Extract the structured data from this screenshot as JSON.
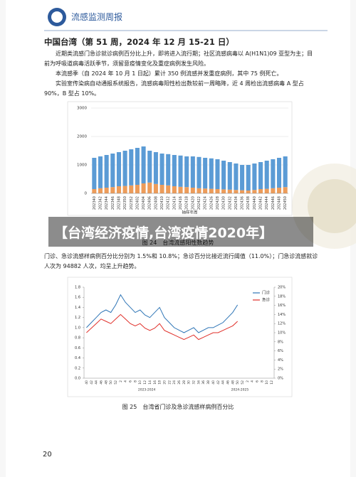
{
  "header": {
    "title": "流感监测周报"
  },
  "section": {
    "title": "中国台湾（第 51 周，2024 年 12 月 15-21 日）",
    "paragraphs": [
      "近期类流感门急诊就诊病例百分比上升，即将进入流行期；社区流感病毒以 A(H1N1)09 亚型为主；目前为呼吸道病毒活跃季节，须留意疫情变化及重症病例发生风险。",
      "本流感季（自 2024 年 10 月 1 日起）累计 350 例流感并发重症病例，其中 75 例死亡。",
      "实验室传染病自动通报系统报告，流感病毒阳性检出数较前一周略降，近 4 周检出流感病毒 A 型占 90%，B 型占 10%。"
    ]
  },
  "overlay": {
    "title": "【台湾经济疫情,台湾疫情2020年】"
  },
  "captions": [
    "图 24　台湾流感阳性数趋势",
    "图 25　台湾省门诊及急诊流感样病例百分比"
  ],
  "paragraph_after": "门诊、急诊流感样病例百分比分别为 1.5%和 10.8%；急诊百分比接近流行阈值（11.0%）；门急诊流感就诊人次为 94882 人次，均呈上升趋势。",
  "page_number": "20",
  "chart_data": [
    {
      "type": "stacked-bar",
      "x_label": "抽样年周",
      "categories": [
        "202340",
        "202342",
        "202344",
        "202346",
        "202348",
        "202350",
        "202352",
        "202402",
        "202404",
        "202406",
        "202408",
        "202410",
        "202412",
        "202414",
        "202416",
        "202418",
        "202420",
        "202422",
        "202424",
        "202426",
        "202428",
        "202430",
        "202432",
        "202434",
        "202436",
        "202438",
        "202440",
        "202442",
        "202444",
        "202446",
        "202448",
        "202450"
      ],
      "series": [
        {
          "color": "#ed9c5a",
          "values": [
            150,
            180,
            200,
            220,
            250,
            260,
            280,
            300,
            350,
            380,
            330,
            300,
            280,
            250,
            230,
            220,
            200,
            180,
            170,
            160,
            150,
            140,
            130,
            120,
            110,
            100,
            120,
            150,
            160,
            180,
            200,
            220
          ]
        },
        {
          "color": "#5b9bd5",
          "values": [
            1100,
            1120,
            1150,
            1180,
            1200,
            1240,
            1270,
            1300,
            1300,
            1120,
            1120,
            1100,
            1100,
            1100,
            1100,
            1080,
            1100,
            1100,
            1080,
            1070,
            1050,
            1010,
            970,
            930,
            890,
            900,
            930,
            950,
            990,
            1020,
            1050,
            1080
          ]
        }
      ],
      "ylim": [
        0,
        3000
      ],
      "yticks": [
        0,
        1000,
        2000,
        3000
      ],
      "grid": true
    },
    {
      "type": "line",
      "categories": [
        "40",
        "42",
        "44",
        "46",
        "48",
        "50",
        "52",
        "2",
        "4",
        "6",
        "8",
        "10",
        "12",
        "14",
        "16",
        "18",
        "20",
        "22",
        "24",
        "26",
        "28",
        "30",
        "32",
        "34",
        "36",
        "38",
        "40",
        "42",
        "44",
        "46",
        "48",
        "50",
        "52",
        "2",
        "4",
        "6",
        "8",
        "10",
        "12"
      ],
      "x_group_labels": [
        "2023-2024",
        "2024-2025"
      ],
      "series": [
        {
          "name": "门诊",
          "color": "#2e75b6",
          "values": [
            1.0,
            1.1,
            1.2,
            1.3,
            1.35,
            1.3,
            1.45,
            1.65,
            1.5,
            1.4,
            1.3,
            1.35,
            1.25,
            1.2,
            1.3,
            1.4,
            1.2,
            1.1,
            1.0,
            0.95,
            0.9,
            0.95,
            1.0,
            0.9,
            0.95,
            1.0,
            1.0,
            1.05,
            1.1,
            1.2,
            1.3,
            1.45,
            null,
            null,
            null,
            null,
            null,
            null,
            null
          ]
        },
        {
          "name": "急诊",
          "color": "#e0302a",
          "axis": "y2",
          "values": [
            10,
            11,
            12,
            13,
            12.5,
            12,
            13,
            14,
            13,
            12,
            11.5,
            12,
            11,
            10.5,
            11,
            12,
            10.5,
            10,
            9.5,
            9,
            8.5,
            9,
            9.5,
            8.5,
            9,
            9.5,
            10,
            10,
            10.5,
            11,
            11.5,
            12.5,
            null,
            null,
            null,
            null,
            null,
            null,
            null
          ]
        }
      ],
      "ylim": [
        0,
        1.8
      ],
      "yticks": [
        {
          "value": 0,
          "label": "0.0"
        },
        0.2,
        0.4,
        0.6,
        0.8,
        {
          "value": 1,
          "label": "1.0"
        },
        1.2,
        1.4,
        1.6,
        1.8
      ],
      "y2lim": [
        0,
        20
      ],
      "y2ticks": [
        {
          "value": 0,
          "label": "0%"
        },
        {
          "value": 2,
          "label": "2%"
        },
        {
          "value": 4,
          "label": "4%"
        },
        {
          "value": 6,
          "label": "6%"
        },
        {
          "value": 8,
          "label": "8%"
        },
        {
          "value": 10,
          "label": "10%"
        },
        {
          "value": 12,
          "label": "12%"
        },
        {
          "value": 14,
          "label": "14%"
        },
        {
          "value": 16,
          "label": "16%"
        },
        {
          "value": 18,
          "label": "18%"
        },
        {
          "value": 20,
          "label": "20%"
        }
      ],
      "legend": "top-right"
    }
  ]
}
